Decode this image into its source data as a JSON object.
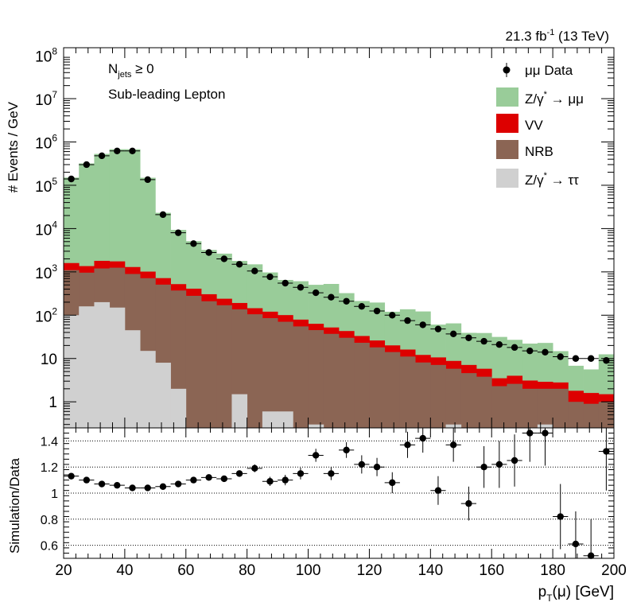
{
  "chart_data": [
    {
      "type": "bar",
      "stacked": true,
      "yscale": "log",
      "xlim": [
        20,
        200
      ],
      "ylim": [
        0.25,
        150000000
      ],
      "ylabel": "# Events / GeV",
      "lumi_label": "21.3 fb",
      "lumi_sup": "-1",
      "lumi_suffix": " (13 TeV)",
      "annotation": {
        "main": "N",
        "sub": "jets",
        "rest": " ≥ 0"
      },
      "annotation2": "Sub-leading Lepton",
      "y_ticks": [
        {
          "v": 100000000,
          "base": "10",
          "exp": "8"
        },
        {
          "v": 10000000,
          "base": "10",
          "exp": "7"
        },
        {
          "v": 1000000,
          "base": "10",
          "exp": "6"
        },
        {
          "v": 100000,
          "base": "10",
          "exp": "5"
        },
        {
          "v": 10000,
          "base": "10",
          "exp": "4"
        },
        {
          "v": 1000,
          "base": "10",
          "exp": "3"
        },
        {
          "v": 100,
          "base": "10",
          "exp": "2"
        },
        {
          "v": 10,
          "base": "10",
          "exp": ""
        },
        {
          "v": 1,
          "base": "1",
          "exp": ""
        }
      ],
      "bin_edges": [
        20,
        25,
        30,
        35,
        40,
        45,
        50,
        55,
        60,
        65,
        70,
        75,
        80,
        85,
        90,
        95,
        100,
        105,
        110,
        115,
        120,
        125,
        130,
        135,
        140,
        145,
        150,
        155,
        160,
        165,
        170,
        175,
        180,
        185,
        190,
        195,
        200
      ],
      "legend": [
        {
          "label": "μμ Data",
          "key": "data"
        },
        {
          "label": "Z/γ",
          "sup": "*",
          "suffix": " → μμ",
          "key": "zmm"
        },
        {
          "label": "VV",
          "key": "vv"
        },
        {
          "label": "NRB",
          "key": "nrb"
        },
        {
          "label": "Z/γ",
          "sup": "*",
          "suffix": " → ττ",
          "key": "ztt"
        }
      ],
      "colors": {
        "zmm": "#99cc99",
        "vv": "#dd0000",
        "nrb": "#8b6554",
        "ztt": "#d0d0d0",
        "data": "#000000"
      },
      "series": [
        {
          "key": "ztt",
          "values": [
            100,
            160,
            200,
            150,
            45,
            15,
            8,
            2,
            0.1,
            0.1,
            0.1,
            1.5,
            0.1,
            0.6,
            0.6,
            0.1,
            0.3,
            0.1,
            0.1,
            0.1,
            0.1,
            0.1,
            0.1,
            0.1,
            0.1,
            0.3,
            0.1,
            0.1,
            0.1,
            0.1,
            0.1,
            0.3,
            0.1,
            0.1,
            0.1,
            0.1
          ]
        },
        {
          "key": "nrb",
          "values": [
            1000,
            800,
            1000,
            1100,
            850,
            700,
            500,
            370,
            280,
            210,
            170,
            135,
            105,
            85,
            70,
            55,
            45,
            37,
            30,
            23,
            18,
            14,
            11,
            8,
            7,
            5.5,
            4.5,
            3.7,
            2.2,
            2.5,
            1.9,
            1.7,
            1.9,
            0.9,
            0.8,
            0.9
          ]
        },
        {
          "key": "vv",
          "values": [
            500,
            400,
            600,
            500,
            400,
            300,
            210,
            150,
            130,
            95,
            70,
            55,
            40,
            35,
            30,
            24,
            18,
            15,
            13,
            10,
            8,
            6,
            5,
            4,
            3.5,
            3,
            2.5,
            2,
            1.2,
            1.4,
            1.1,
            0.9,
            0.8,
            0.8,
            0.7,
            0.5
          ]
        },
        {
          "key": "zmm",
          "values": [
            149000,
            318000,
            528000,
            678000,
            678000,
            148000,
            22400,
            8800,
            4700,
            2900,
            2400,
            1600,
            1350,
            850,
            550,
            530,
            440,
            475,
            280,
            180,
            170,
            100,
            121,
            110,
            50,
            56,
            32,
            33,
            28,
            23,
            19,
            20,
            12,
            5,
            4,
            11
          ]
        }
      ],
      "data": [
        140000,
        300000,
        480000,
        620000,
        620000,
        135000,
        21000,
        8000,
        4500,
        2800,
        2000,
        1500,
        1050,
        770,
        550,
        440,
        330,
        260,
        210,
        160,
        125,
        100,
        75,
        60,
        48,
        37,
        30,
        25,
        21,
        18,
        15,
        14,
        11,
        10,
        10,
        9
      ]
    },
    {
      "type": "scatter",
      "ylabel": "Simulation/Data",
      "xlabel_main": "p",
      "xlabel_sub": "T",
      "xlabel_rest": "(μ) [GeV]",
      "xlim": [
        20,
        200
      ],
      "ylim": [
        0.5,
        1.5
      ],
      "x_ticks": [
        20,
        40,
        60,
        80,
        100,
        120,
        140,
        160,
        180,
        200
      ],
      "y_ticks": [
        {
          "v": 0.6,
          "label": "0.6"
        },
        {
          "v": 0.8,
          "label": "0.8"
        },
        {
          "v": 1.0,
          "label": "1"
        },
        {
          "v": 1.2,
          "label": "1.2"
        },
        {
          "v": 1.4,
          "label": "1.4"
        }
      ],
      "grid_y": [
        0.6,
        0.8,
        1.0,
        1.2,
        1.4
      ],
      "points": [
        {
          "x": 22.5,
          "y": 1.13,
          "e": 0.012
        },
        {
          "x": 27.5,
          "y": 1.1,
          "e": 0.01
        },
        {
          "x": 32.5,
          "y": 1.07,
          "e": 0.01
        },
        {
          "x": 37.5,
          "y": 1.06,
          "e": 0.01
        },
        {
          "x": 42.5,
          "y": 1.04,
          "e": 0.01
        },
        {
          "x": 47.5,
          "y": 1.04,
          "e": 0.01
        },
        {
          "x": 52.5,
          "y": 1.05,
          "e": 0.012
        },
        {
          "x": 57.5,
          "y": 1.07,
          "e": 0.015
        },
        {
          "x": 62.5,
          "y": 1.1,
          "e": 0.018
        },
        {
          "x": 67.5,
          "y": 1.12,
          "e": 0.02
        },
        {
          "x": 72.5,
          "y": 1.11,
          "e": 0.02
        },
        {
          "x": 77.5,
          "y": 1.15,
          "e": 0.025
        },
        {
          "x": 82.5,
          "y": 1.19,
          "e": 0.03
        },
        {
          "x": 87.5,
          "y": 1.09,
          "e": 0.035
        },
        {
          "x": 92.5,
          "y": 1.1,
          "e": 0.04
        },
        {
          "x": 97.5,
          "y": 1.15,
          "e": 0.045
        },
        {
          "x": 102.5,
          "y": 1.29,
          "e": 0.05
        },
        {
          "x": 107.5,
          "y": 1.15,
          "e": 0.05
        },
        {
          "x": 112.5,
          "y": 1.33,
          "e": 0.06
        },
        {
          "x": 117.5,
          "y": 1.22,
          "e": 0.07
        },
        {
          "x": 122.5,
          "y": 1.2,
          "e": 0.07
        },
        {
          "x": 127.5,
          "y": 1.08,
          "e": 0.08
        },
        {
          "x": 132.5,
          "y": 1.37,
          "e": 0.1
        },
        {
          "x": 137.5,
          "y": 1.42,
          "e": 0.11
        },
        {
          "x": 142.5,
          "y": 1.02,
          "e": 0.11
        },
        {
          "x": 147.5,
          "y": 1.37,
          "e": 0.13
        },
        {
          "x": 152.5,
          "y": 0.92,
          "e": 0.13
        },
        {
          "x": 157.5,
          "y": 1.2,
          "e": 0.16
        },
        {
          "x": 162.5,
          "y": 1.22,
          "e": 0.18
        },
        {
          "x": 167.5,
          "y": 1.25,
          "e": 0.2
        },
        {
          "x": 172.5,
          "y": 1.46,
          "e": 0.22
        },
        {
          "x": 177.5,
          "y": 1.46,
          "e": 0.25
        },
        {
          "x": 182.5,
          "y": 0.82,
          "e": 0.25
        },
        {
          "x": 187.5,
          "y": 0.61,
          "e": 0.25
        },
        {
          "x": 192.5,
          "y": 0.52,
          "e": 0.28
        },
        {
          "x": 197.5,
          "y": 1.32,
          "e": 0.3
        }
      ]
    }
  ]
}
